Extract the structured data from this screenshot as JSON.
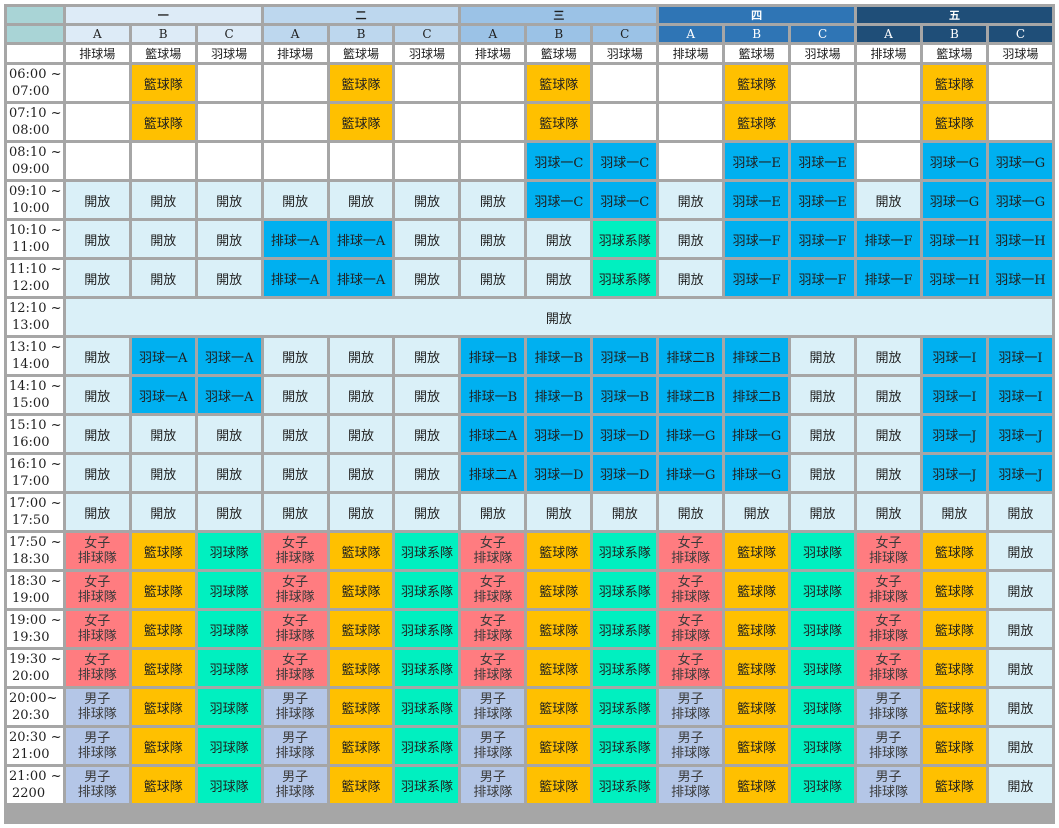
{
  "days": [
    {
      "label": "一",
      "head_bg": "#ddebf7",
      "head_color": "#1f1f1f",
      "sub_bg": "#ddebf7",
      "sub_color": "#1f1f1f"
    },
    {
      "label": "二",
      "head_bg": "#bdd7ee",
      "head_color": "#1f1f1f",
      "sub_bg": "#bdd7ee",
      "sub_color": "#1f1f1f"
    },
    {
      "label": "三",
      "head_bg": "#9bc2e6",
      "head_color": "#1f1f1f",
      "sub_bg": "#9bc2e6",
      "sub_color": "#1f1f1f"
    },
    {
      "label": "四",
      "head_bg": "#2f75b5",
      "head_color": "#ffffff",
      "sub_bg": "#2f75b5",
      "sub_color": "#ffffff"
    },
    {
      "label": "五",
      "head_bg": "#1f4e78",
      "head_color": "#ffffff",
      "sub_bg": "#1f4e78",
      "sub_color": "#ffffff"
    }
  ],
  "courts": [
    "A",
    "B",
    "C"
  ],
  "venues": [
    "排球場",
    "籃球場",
    "羽球場"
  ],
  "legend": {
    "open": {
      "text": "開放",
      "color": "#daf0f8"
    },
    "basketball": {
      "text": "籃球隊",
      "color": "#ffc000"
    },
    "badminton_team": {
      "text": "羽球隊",
      "color": "#00f0c0"
    },
    "badminton_club": {
      "text": "羽球系隊",
      "color": "#00f0c0"
    },
    "women_volleyball": {
      "line1": "女子",
      "line2": "排球隊",
      "color": "#ff7c80"
    },
    "men_volleyball": {
      "line1": "男子",
      "line2": "排球隊",
      "color": "#b4c6e7"
    },
    "course": {
      "color": "#00b0f0"
    }
  },
  "rows": [
    {
      "time": [
        "06:00 ~",
        "07:00"
      ],
      "cells": [
        "",
        "籃球隊",
        "",
        "",
        "籃球隊",
        "",
        "",
        "籃球隊",
        "",
        "",
        "籃球隊",
        "",
        "",
        "籃球隊",
        ""
      ]
    },
    {
      "time": [
        "07:10 ~",
        "08:00"
      ],
      "cells": [
        "",
        "籃球隊",
        "",
        "",
        "籃球隊",
        "",
        "",
        "籃球隊",
        "",
        "",
        "籃球隊",
        "",
        "",
        "籃球隊",
        ""
      ]
    },
    {
      "time": [
        "08:10 ~",
        "09:00"
      ],
      "cells": [
        "",
        "",
        "",
        "",
        "",
        "",
        "",
        "羽球一C",
        "羽球一C",
        "",
        "羽球一E",
        "羽球一E",
        "",
        "羽球一G",
        "羽球一G"
      ]
    },
    {
      "time": [
        "09:10 ~",
        "10:00"
      ],
      "cells": [
        "開放",
        "開放",
        "開放",
        "開放",
        "開放",
        "開放",
        "開放",
        "羽球一C",
        "羽球一C",
        "開放",
        "羽球一E",
        "羽球一E",
        "開放",
        "羽球一G",
        "羽球一G"
      ]
    },
    {
      "time": [
        "10:10 ~",
        "11:00"
      ],
      "cells": [
        "開放",
        "開放",
        "開放",
        "排球一A",
        "排球一A",
        "開放",
        "開放",
        "開放",
        "羽球系隊",
        "開放",
        "羽球一F",
        "羽球一F",
        "排球一F",
        "羽球一H",
        "羽球一H"
      ]
    },
    {
      "time": [
        "11:10 ~",
        "12:00"
      ],
      "cells": [
        "開放",
        "開放",
        "開放",
        "排球一A",
        "排球一A",
        "開放",
        "開放",
        "開放",
        "羽球系隊",
        "開放",
        "羽球一F",
        "羽球一F",
        "排球一F",
        "羽球一H",
        "羽球一H"
      ]
    },
    {
      "time": [
        "12:10 ~",
        "13:00"
      ],
      "span_text": "開放"
    },
    {
      "time": [
        "13:10 ~",
        "14:00"
      ],
      "cells": [
        "開放",
        "羽球一A",
        "羽球一A",
        "開放",
        "開放",
        "開放",
        "排球一B",
        "排球一B",
        "羽球一B",
        "排球二B",
        "排球二B",
        "開放",
        "開放",
        "羽球一I",
        "羽球一I"
      ]
    },
    {
      "time": [
        "14:10 ~",
        "15:00"
      ],
      "cells": [
        "開放",
        "羽球一A",
        "羽球一A",
        "開放",
        "開放",
        "開放",
        "排球一B",
        "排球一B",
        "羽球一B",
        "排球二B",
        "排球二B",
        "開放",
        "開放",
        "羽球一I",
        "羽球一I"
      ]
    },
    {
      "time": [
        "15:10 ~",
        "16:00"
      ],
      "cells": [
        "開放",
        "開放",
        "開放",
        "開放",
        "開放",
        "開放",
        "排球二A",
        "羽球一D",
        "羽球一D",
        "排球一G",
        "排球一G",
        "開放",
        "開放",
        "羽球一J",
        "羽球一J"
      ]
    },
    {
      "time": [
        "16:10 ~",
        "17:00"
      ],
      "cells": [
        "開放",
        "開放",
        "開放",
        "開放",
        "開放",
        "開放",
        "排球二A",
        "羽球一D",
        "羽球一D",
        "排球一G",
        "排球一G",
        "開放",
        "開放",
        "羽球一J",
        "羽球一J"
      ]
    },
    {
      "time": [
        "17:00 ~",
        "17:50"
      ],
      "cells": [
        "開放",
        "開放",
        "開放",
        "開放",
        "開放",
        "開放",
        "開放",
        "開放",
        "開放",
        "開放",
        "開放",
        "開放",
        "開放",
        "開放",
        "開放"
      ]
    },
    {
      "time": [
        "17:50 ~",
        "18:30"
      ],
      "cells": [
        "女子|排球隊",
        "籃球隊",
        "羽球隊",
        "女子|排球隊",
        "籃球隊",
        "羽球系隊",
        "女子|排球隊",
        "籃球隊",
        "羽球系隊",
        "女子|排球隊",
        "籃球隊",
        "羽球隊",
        "女子|排球隊",
        "籃球隊",
        "開放"
      ]
    },
    {
      "time": [
        "18:30 ~",
        "19:00"
      ],
      "cells": [
        "女子|排球隊",
        "籃球隊",
        "羽球隊",
        "女子|排球隊",
        "籃球隊",
        "羽球系隊",
        "女子|排球隊",
        "籃球隊",
        "羽球系隊",
        "女子|排球隊",
        "籃球隊",
        "羽球隊",
        "女子|排球隊",
        "籃球隊",
        "開放"
      ]
    },
    {
      "time": [
        "19:00 ~",
        "19:30"
      ],
      "cells": [
        "女子|排球隊",
        "籃球隊",
        "羽球隊",
        "女子|排球隊",
        "籃球隊",
        "羽球系隊",
        "女子|排球隊",
        "籃球隊",
        "羽球系隊",
        "女子|排球隊",
        "籃球隊",
        "羽球隊",
        "女子|排球隊",
        "籃球隊",
        "開放"
      ]
    },
    {
      "time": [
        "19:30 ~",
        "20:00"
      ],
      "cells": [
        "女子|排球隊",
        "籃球隊",
        "羽球隊",
        "女子|排球隊",
        "籃球隊",
        "羽球系隊",
        "女子|排球隊",
        "籃球隊",
        "羽球系隊",
        "女子|排球隊",
        "籃球隊",
        "羽球隊",
        "女子|排球隊",
        "籃球隊",
        "開放"
      ]
    },
    {
      "time": [
        "20:00~",
        "20:30"
      ],
      "cells": [
        "男子|排球隊",
        "籃球隊",
        "羽球隊",
        "男子|排球隊",
        "籃球隊",
        "羽球系隊",
        "男子|排球隊",
        "籃球隊",
        "羽球系隊",
        "男子|排球隊",
        "籃球隊",
        "羽球隊",
        "男子|排球隊",
        "籃球隊",
        "開放"
      ]
    },
    {
      "time": [
        "20:30 ~",
        "21:00"
      ],
      "cells": [
        "男子|排球隊",
        "籃球隊",
        "羽球隊",
        "男子|排球隊",
        "籃球隊",
        "羽球系隊",
        "男子|排球隊",
        "籃球隊",
        "羽球系隊",
        "男子|排球隊",
        "籃球隊",
        "羽球隊",
        "男子|排球隊",
        "籃球隊",
        "開放"
      ]
    },
    {
      "time": [
        "21:00 ~",
        "2200"
      ],
      "cells": [
        "男子|排球隊",
        "籃球隊",
        "羽球隊",
        "男子|排球隊",
        "籃球隊",
        "羽球系隊",
        "男子|排球隊",
        "籃球隊",
        "羽球系隊",
        "男子|排球隊",
        "籃球隊",
        "羽球隊",
        "男子|排球隊",
        "籃球隊",
        "開放"
      ]
    }
  ]
}
